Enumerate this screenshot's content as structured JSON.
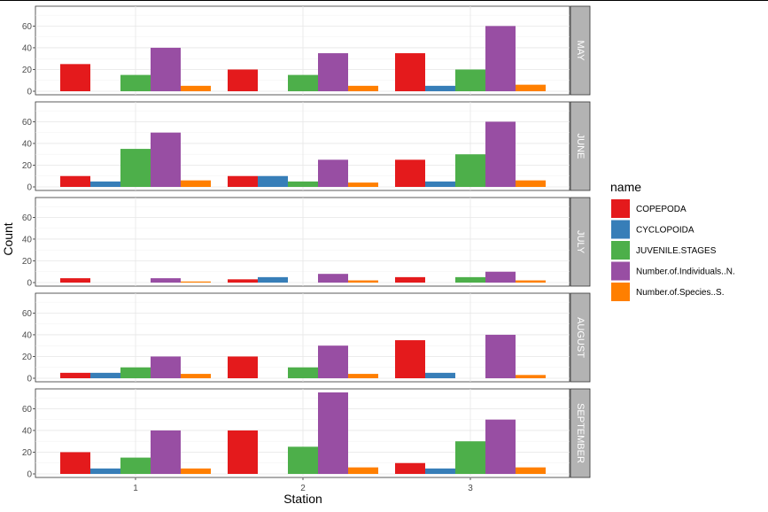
{
  "chart_data": {
    "type": "bar",
    "xlabel": "Station",
    "ylabel": "Count",
    "ylim": [
      0,
      75
    ],
    "y_ticks": [
      0,
      20,
      40,
      60
    ],
    "categories": [
      "1",
      "2",
      "3"
    ],
    "legend_title": "name",
    "legend_position": "right",
    "grid": true,
    "series": [
      {
        "name": "COPEPODA",
        "color": "#E41A1C"
      },
      {
        "name": "CYCLOPOIDA",
        "color": "#377EB8"
      },
      {
        "name": "JUVENILE.STAGES",
        "color": "#4DAF4A"
      },
      {
        "name": "Number.of.Individuals..N.",
        "color": "#984EA3"
      },
      {
        "name": "Number.of.Species..S.",
        "color": "#FF7F00"
      }
    ],
    "panels": [
      {
        "label": "MAY",
        "values": [
          [
            25,
            0,
            15,
            40,
            5
          ],
          [
            20,
            0,
            15,
            35,
            5
          ],
          [
            35,
            5,
            20,
            60,
            6
          ]
        ]
      },
      {
        "label": "JUNE",
        "values": [
          [
            10,
            5,
            35,
            50,
            6
          ],
          [
            10,
            10,
            5,
            25,
            4
          ],
          [
            25,
            5,
            30,
            60,
            6
          ]
        ]
      },
      {
        "label": "JULY",
        "values": [
          [
            4,
            0,
            0,
            4,
            1
          ],
          [
            3,
            5,
            0,
            8,
            2
          ],
          [
            5,
            0,
            5,
            10,
            2
          ]
        ]
      },
      {
        "label": "AUGUST",
        "values": [
          [
            5,
            5,
            10,
            20,
            4
          ],
          [
            20,
            0,
            10,
            30,
            4
          ],
          [
            35,
            5,
            0,
            40,
            3
          ]
        ]
      },
      {
        "label": "SEPTEMBER",
        "values": [
          [
            20,
            5,
            15,
            40,
            5
          ],
          [
            40,
            0,
            25,
            75,
            6
          ],
          [
            10,
            5,
            30,
            50,
            6
          ]
        ]
      }
    ]
  }
}
